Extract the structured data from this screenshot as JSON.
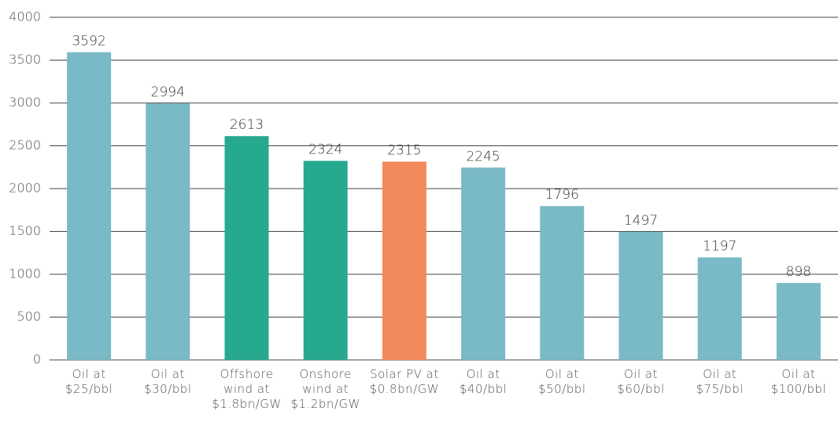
{
  "chart_data": {
    "type": "bar",
    "categories": [
      "Oil at $25/bbl",
      "Oil at $30/bbl",
      "Offshore wind at $1.8bn/GW",
      "Onshore wind at $1.2bn/GW",
      "Solar PV at $0.8bn/GW",
      "Oil at $40/bbl",
      "Oil at $50/bbl",
      "Oil at $60/bbl",
      "Oil at $75/bbl",
      "Oil at $100/bbl"
    ],
    "values": [
      3592,
      2994,
      2613,
      2324,
      2315,
      2245,
      1796,
      1497,
      1197,
      898
    ],
    "colors": [
      "#7ab9c6",
      "#7ab9c6",
      "#27a98f",
      "#27a98f",
      "#f28a5c",
      "#7ab9c6",
      "#7ab9c6",
      "#7ab9c6",
      "#7ab9c6",
      "#7ab9c6"
    ],
    "ylim": [
      0,
      4000
    ],
    "yticks": [
      0,
      500,
      1000,
      1500,
      2000,
      2500,
      3000,
      3500,
      4000
    ],
    "grid": true
  }
}
